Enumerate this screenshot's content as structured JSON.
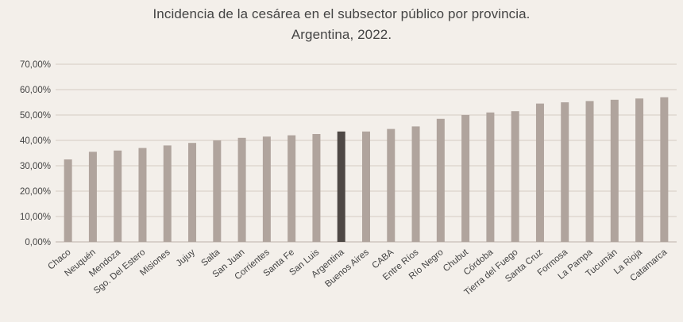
{
  "chart_data": {
    "type": "bar",
    "title": "Incidencia de la cesárea en el subsector público por provincia.",
    "subtitle": "Argentina, 2022.",
    "xlabel": "",
    "ylabel": "",
    "ylim": [
      0,
      70
    ],
    "yticks": [
      "0,00%",
      "10,00%",
      "20,00%",
      "30,00%",
      "40,00%",
      "50,00%",
      "60,00%",
      "70,00%"
    ],
    "grid": true,
    "categories": [
      "Chaco",
      "Neuquén",
      "Mendoza",
      "Sgo. Del Estero",
      "Misiones",
      "Jujuy",
      "Salta",
      "San Juan",
      "Corrientes",
      "Santa Fe",
      "San Luis",
      "Argentina",
      "Buenos Aires",
      "CABA",
      "Entre Ríos",
      "Río Negro",
      "Chubut",
      "Córdoba",
      "Tierra del Fuego",
      "Santa Cruz",
      "Formosa",
      "La Pampa",
      "Tucumán",
      "La Rioja",
      "Catamarca"
    ],
    "values": [
      32.5,
      35.5,
      36.0,
      37.0,
      38.0,
      39.0,
      40.0,
      41.0,
      41.5,
      42.0,
      42.5,
      43.5,
      43.5,
      44.5,
      45.5,
      48.5,
      50.0,
      51.0,
      51.5,
      54.5,
      55.0,
      55.5,
      56.0,
      56.5,
      57.0
    ],
    "highlight": "Argentina",
    "colors": {
      "bar": "#b0a49d",
      "highlight": "#4e4845",
      "grid": "#d5cbc2",
      "axis": "#bdb2aa",
      "text": "#444444"
    }
  }
}
